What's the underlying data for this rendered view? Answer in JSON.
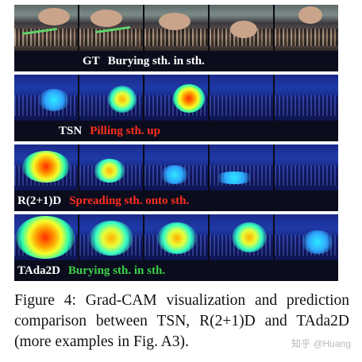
{
  "figure": {
    "rows": [
      {
        "model": "GT",
        "prediction": "Burying sth. in sth.",
        "status": "neutral",
        "kind": "natural"
      },
      {
        "model": "TSN",
        "prediction": "Pilling sth. up",
        "status": "wrong",
        "kind": "heat"
      },
      {
        "model": "R(2+1)D",
        "prediction": "Spreading sth. onto sth.",
        "status": "wrong",
        "kind": "heat"
      },
      {
        "model": "TAda2D",
        "prediction": "Burying sth. in sth.",
        "status": "correct",
        "kind": "heat"
      }
    ],
    "colors": {
      "correct": "#3cd24a",
      "wrong": "#ff2e1f",
      "neutral": "#ffffff"
    }
  },
  "caption": {
    "text": "Figure 4: Grad-CAM visualization and prediction comparison between TSN, R(2+1)D and TAda2D (more examples in Fig. A3)."
  },
  "watermark": {
    "text": "知乎 @Huang"
  }
}
